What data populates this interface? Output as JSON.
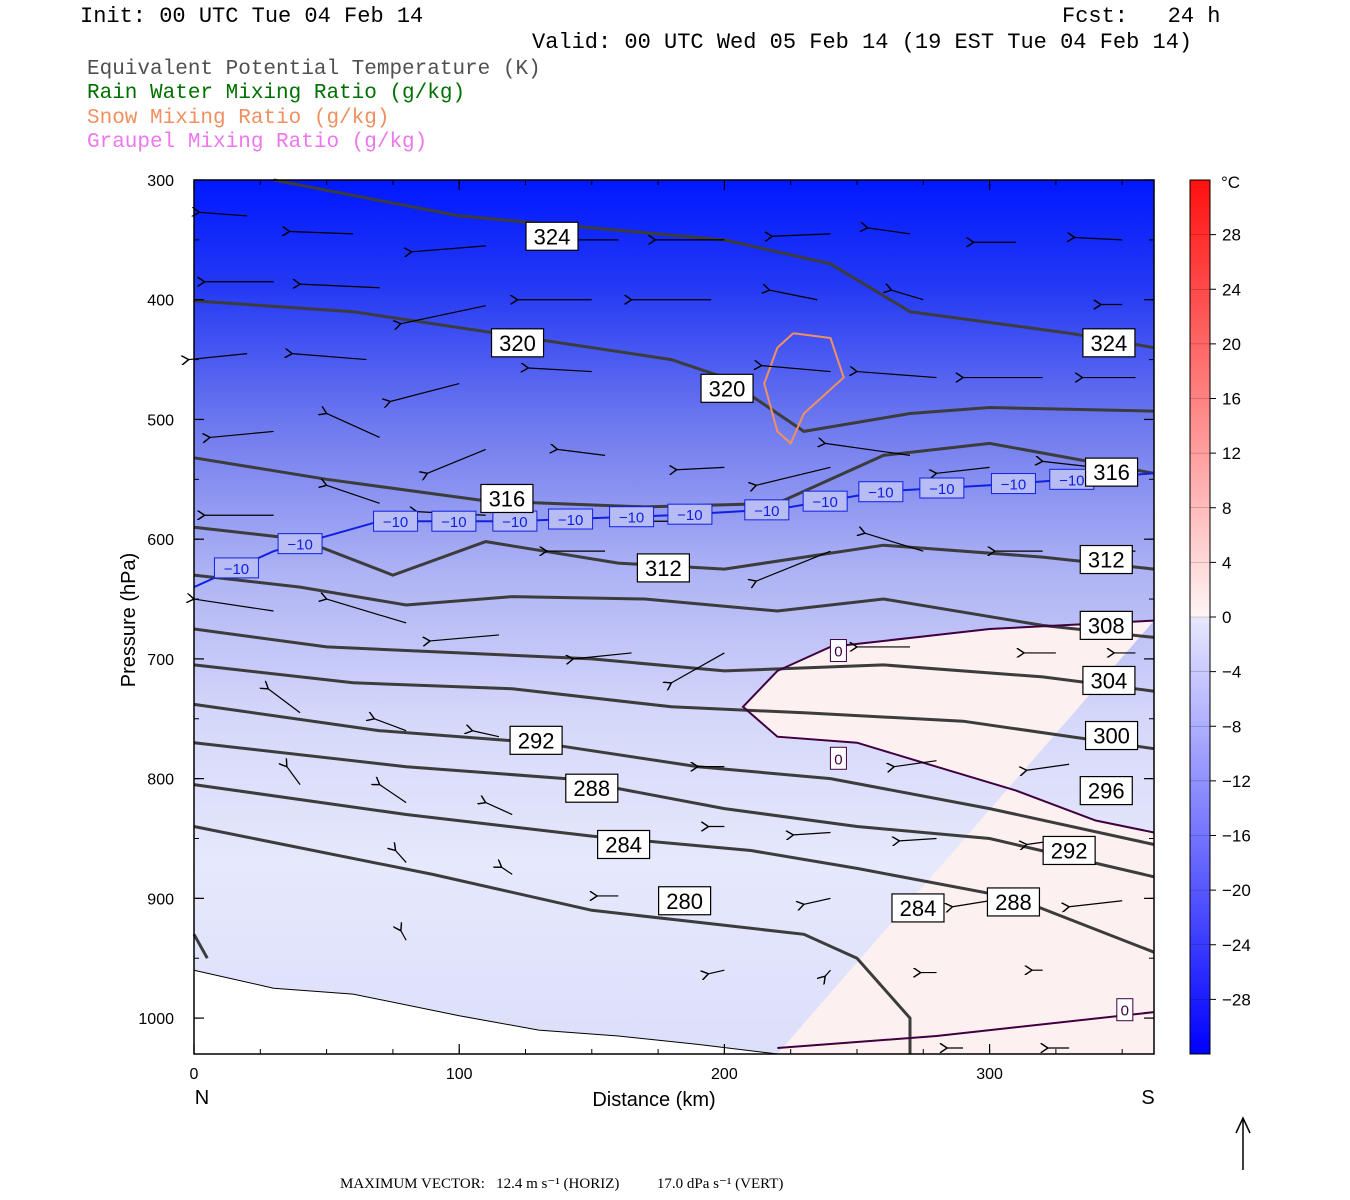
{
  "header": {
    "init": "Init: 00 UTC Tue 04 Feb 14",
    "fcst": "Fcst:   24 h",
    "valid": "Valid: 00 UTC Wed 05 Feb 14 (19 EST Tue 04 Feb 14)"
  },
  "legend": [
    {
      "text": "Equivalent Potential Temperature (K)",
      "color": "#505050"
    },
    {
      "text": "Rain Water Mixing Ratio (g/kg)",
      "color": "#007000"
    },
    {
      "text": "Snow Mixing Ratio (g/kg)",
      "color": "#f09060"
    },
    {
      "text": "Graupel Mixing Ratio (g/kg)",
      "color": "#ee77ee"
    }
  ],
  "chart_data": {
    "type": "cross-section",
    "xlabel": "Distance (km)",
    "ylabel": "Pressure (hPa)",
    "xlim": [
      0,
      362
    ],
    "ylim": [
      1030,
      300
    ],
    "x_ticks": [
      0,
      100,
      200,
      300
    ],
    "y_ticks": [
      300,
      400,
      500,
      600,
      700,
      800,
      900,
      1000
    ],
    "x_end_labels": {
      "left": "N",
      "right": "S"
    },
    "colorbar": {
      "unit": "°C",
      "min": -32,
      "max": 32,
      "labels": [
        28,
        24,
        20,
        16,
        12,
        8,
        4,
        0,
        -4,
        -8,
        -12,
        -16,
        -20,
        -24,
        -28
      ],
      "label_text": [
        "28",
        "24",
        "20",
        "16",
        "12",
        "8",
        "4",
        "0",
        "−4",
        "−8",
        "−12",
        "−16",
        "−20",
        "−24",
        "−28"
      ]
    },
    "theta_e_contours": [
      {
        "label": "324",
        "points": [
          [
            30,
            300
          ],
          [
            100,
            330
          ],
          [
            200,
            350
          ],
          [
            240,
            370
          ],
          [
            270,
            410
          ],
          [
            330,
            428
          ],
          [
            362,
            440
          ]
        ]
      },
      {
        "label": "320",
        "points": [
          [
            0,
            401
          ],
          [
            60,
            410
          ],
          [
            120,
            430
          ],
          [
            180,
            450
          ],
          [
            200,
            465
          ],
          [
            230,
            510
          ],
          [
            270,
            495
          ],
          [
            300,
            490
          ],
          [
            362,
            493
          ]
        ]
      },
      {
        "label": "316",
        "points": [
          [
            0,
            532
          ],
          [
            50,
            550
          ],
          [
            110,
            568
          ],
          [
            170,
            573
          ],
          [
            220,
            570
          ],
          [
            260,
            530
          ],
          [
            300,
            520
          ],
          [
            362,
            545
          ]
        ]
      },
      {
        "label": "312",
        "points": [
          [
            0,
            590
          ],
          [
            40,
            600
          ],
          [
            75,
            630
          ],
          [
            110,
            602
          ],
          [
            160,
            620
          ],
          [
            200,
            625
          ],
          [
            260,
            605
          ],
          [
            320,
            615
          ],
          [
            362,
            625
          ]
        ]
      },
      {
        "label": "308",
        "points": [
          [
            0,
            630
          ],
          [
            40,
            640
          ],
          [
            80,
            655
          ],
          [
            120,
            648
          ],
          [
            170,
            650
          ],
          [
            220,
            660
          ],
          [
            260,
            650
          ],
          [
            320,
            672
          ],
          [
            362,
            682
          ]
        ]
      },
      {
        "label": "304",
        "points": [
          [
            0,
            675
          ],
          [
            50,
            690
          ],
          [
            100,
            695
          ],
          [
            150,
            700
          ],
          [
            200,
            710
          ],
          [
            260,
            705
          ],
          [
            320,
            715
          ],
          [
            362,
            727
          ]
        ]
      },
      {
        "label": "300",
        "points": [
          [
            0,
            705
          ],
          [
            60,
            720
          ],
          [
            120,
            725
          ],
          [
            180,
            740
          ],
          [
            230,
            745
          ],
          [
            290,
            752
          ],
          [
            362,
            775
          ]
        ]
      },
      {
        "label": "296",
        "points": [
          [
            0,
            738
          ],
          [
            70,
            760
          ],
          [
            130,
            770
          ],
          [
            190,
            790
          ],
          [
            240,
            800
          ],
          [
            300,
            825
          ],
          [
            362,
            855
          ]
        ]
      },
      {
        "label": "292",
        "points": [
          [
            0,
            770
          ],
          [
            80,
            790
          ],
          [
            140,
            800
          ],
          [
            200,
            825
          ],
          [
            250,
            840
          ],
          [
            300,
            850
          ],
          [
            362,
            882
          ]
        ]
      },
      {
        "label": "288",
        "points": [
          [
            0,
            805
          ],
          [
            80,
            830
          ],
          [
            150,
            848
          ],
          [
            210,
            860
          ],
          [
            250,
            875
          ],
          [
            310,
            900
          ],
          [
            362,
            945
          ]
        ]
      },
      {
        "label": "284",
        "points": [
          [
            0,
            840
          ],
          [
            90,
            880
          ],
          [
            150,
            910
          ],
          [
            190,
            920
          ],
          [
            230,
            930
          ],
          [
            250,
            950
          ],
          [
            270,
            1000
          ],
          [
            270,
            1030
          ]
        ]
      },
      {
        "label": "280",
        "points": [
          [
            0,
            930
          ],
          [
            5,
            950
          ]
        ]
      }
    ],
    "theta_e_labels": [
      {
        "text": "324",
        "x": 135,
        "p": 347
      },
      {
        "text": "320",
        "x": 122,
        "p": 436
      },
      {
        "text": "320",
        "x": 201,
        "p": 474
      },
      {
        "text": "324",
        "x": 345,
        "p": 436
      },
      {
        "text": "316",
        "x": 118,
        "p": 566
      },
      {
        "text": "316",
        "x": 346,
        "p": 544
      },
      {
        "text": "312",
        "x": 177,
        "p": 624
      },
      {
        "text": "312",
        "x": 344,
        "p": 617
      },
      {
        "text": "308",
        "x": 344,
        "p": 672
      },
      {
        "text": "304",
        "x": 345,
        "p": 718
      },
      {
        "text": "300",
        "x": 346,
        "p": 764
      },
      {
        "text": "296",
        "x": 344,
        "p": 810
      },
      {
        "text": "292",
        "x": 129,
        "p": 768
      },
      {
        "text": "292",
        "x": 330,
        "p": 860
      },
      {
        "text": "288",
        "x": 150,
        "p": 808
      },
      {
        "text": "284",
        "x": 162,
        "p": 855
      },
      {
        "text": "280",
        "x": 185,
        "p": 902
      },
      {
        "text": "284",
        "x": 273,
        "p": 908
      },
      {
        "text": "288",
        "x": 309,
        "p": 903
      }
    ],
    "isotherm_minus10": {
      "label": "−10",
      "points": [
        [
          0,
          640
        ],
        [
          30,
          610
        ],
        [
          70,
          585
        ],
        [
          120,
          585
        ],
        [
          180,
          580
        ],
        [
          220,
          575
        ],
        [
          260,
          560
        ],
        [
          300,
          555
        ],
        [
          362,
          545
        ]
      ],
      "label_x": [
        16,
        40,
        76,
        98,
        121,
        142,
        165,
        187,
        216,
        238,
        259,
        282,
        309,
        331
      ]
    },
    "isotherm_zero": {
      "label": "0",
      "upper": [
        [
          362,
          668
        ],
        [
          300,
          675
        ],
        [
          240,
          690
        ],
        [
          220,
          710
        ],
        [
          207,
          740
        ],
        [
          220,
          765
        ],
        [
          250,
          770
        ],
        [
          280,
          790
        ],
        [
          310,
          810
        ],
        [
          340,
          835
        ],
        [
          362,
          845
        ]
      ],
      "lower": [
        [
          220,
          1025
        ],
        [
          280,
          1015
        ],
        [
          362,
          995
        ]
      ],
      "label_positions": [
        [
          243,
          693
        ],
        [
          243,
          783
        ],
        [
          351,
          993
        ]
      ]
    },
    "snow_contour": {
      "points": [
        [
          226,
          428
        ],
        [
          240,
          432
        ],
        [
          245,
          465
        ],
        [
          230,
          495
        ],
        [
          225,
          520
        ],
        [
          220,
          510
        ],
        [
          215,
          470
        ],
        [
          220,
          440
        ],
        [
          226,
          428
        ]
      ]
    },
    "temperature_field_note": "shaded −28 to +4 °C",
    "terrain": [
      [
        0,
        960
      ],
      [
        30,
        975
      ],
      [
        60,
        980
      ],
      [
        100,
        998
      ],
      [
        130,
        1010
      ],
      [
        160,
        1015
      ],
      [
        190,
        1022
      ],
      [
        220,
        1030
      ]
    ],
    "vectors": [
      {
        "x": 20,
        "p": 330,
        "dx": -18,
        "dp": -3
      },
      {
        "x": 60,
        "p": 345,
        "dx": -24,
        "dp": -2
      },
      {
        "x": 110,
        "p": 355,
        "dx": -28,
        "dp": 5
      },
      {
        "x": 160,
        "p": 350,
        "dx": -30,
        "dp": 0
      },
      {
        "x": 200,
        "p": 350,
        "dx": -26,
        "dp": 0
      },
      {
        "x": 240,
        "p": 345,
        "dx": -22,
        "dp": 2
      },
      {
        "x": 270,
        "p": 345,
        "dx": -16,
        "dp": -5
      },
      {
        "x": 310,
        "p": 352,
        "dx": -16,
        "dp": 0
      },
      {
        "x": 350,
        "p": 350,
        "dx": -18,
        "dp": -2
      },
      {
        "x": 30,
        "p": 385,
        "dx": -26,
        "dp": 0
      },
      {
        "x": 70,
        "p": 390,
        "dx": -30,
        "dp": -3
      },
      {
        "x": 110,
        "p": 405,
        "dx": -32,
        "dp": 15
      },
      {
        "x": 150,
        "p": 400,
        "dx": -28,
        "dp": 0
      },
      {
        "x": 195,
        "p": 400,
        "dx": -30,
        "dp": 0
      },
      {
        "x": 235,
        "p": 400,
        "dx": -18,
        "dp": -8
      },
      {
        "x": 275,
        "p": 400,
        "dx": -12,
        "dp": -8
      },
      {
        "x": 350,
        "p": 404,
        "dx": -8,
        "dp": 0
      },
      {
        "x": 20,
        "p": 445,
        "dx": -22,
        "dp": 5
      },
      {
        "x": 65,
        "p": 450,
        "dx": -28,
        "dp": -5
      },
      {
        "x": 100,
        "p": 470,
        "dx": -26,
        "dp": 15
      },
      {
        "x": 150,
        "p": 460,
        "dx": -24,
        "dp": -3
      },
      {
        "x": 240,
        "p": 460,
        "dx": -26,
        "dp": -5
      },
      {
        "x": 280,
        "p": 465,
        "dx": -30,
        "dp": -5
      },
      {
        "x": 320,
        "p": 465,
        "dx": -30,
        "dp": 0
      },
      {
        "x": 355,
        "p": 465,
        "dx": -20,
        "dp": 0
      },
      {
        "x": 30,
        "p": 510,
        "dx": -24,
        "dp": 5
      },
      {
        "x": 70,
        "p": 515,
        "dx": -20,
        "dp": -20
      },
      {
        "x": 110,
        "p": 525,
        "dx": -22,
        "dp": 20
      },
      {
        "x": 155,
        "p": 530,
        "dx": -18,
        "dp": -5
      },
      {
        "x": 200,
        "p": 540,
        "dx": -18,
        "dp": 2
      },
      {
        "x": 240,
        "p": 540,
        "dx": -28,
        "dp": 15
      },
      {
        "x": 270,
        "p": 530,
        "dx": -32,
        "dp": -10
      },
      {
        "x": 300,
        "p": 540,
        "dx": -20,
        "dp": 5
      },
      {
        "x": 340,
        "p": 540,
        "dx": -20,
        "dp": -5
      },
      {
        "x": 30,
        "p": 580,
        "dx": -26,
        "dp": 0
      },
      {
        "x": 70,
        "p": 570,
        "dx": -20,
        "dp": -15
      },
      {
        "x": 110,
        "p": 580,
        "dx": -26,
        "dp": -3
      },
      {
        "x": 155,
        "p": 610,
        "dx": -22,
        "dp": 0
      },
      {
        "x": 195,
        "p": 585,
        "dx": -30,
        "dp": 0
      },
      {
        "x": 240,
        "p": 610,
        "dx": -28,
        "dp": 25
      },
      {
        "x": 275,
        "p": 610,
        "dx": -22,
        "dp": -15
      },
      {
        "x": 320,
        "p": 610,
        "dx": -18,
        "dp": 0
      },
      {
        "x": 355,
        "p": 610,
        "dx": -10,
        "dp": 0
      },
      {
        "x": 30,
        "p": 660,
        "dx": -30,
        "dp": -10
      },
      {
        "x": 80,
        "p": 670,
        "dx": -30,
        "dp": -20
      },
      {
        "x": 115,
        "p": 680,
        "dx": -26,
        "dp": 5
      },
      {
        "x": 165,
        "p": 695,
        "dx": -22,
        "dp": 5
      },
      {
        "x": 200,
        "p": 695,
        "dx": -20,
        "dp": 25
      },
      {
        "x": 270,
        "p": 690,
        "dx": -20,
        "dp": 0
      },
      {
        "x": 325,
        "p": 695,
        "dx": -12,
        "dp": 0
      },
      {
        "x": 355,
        "p": 695,
        "dx": -8,
        "dp": 0
      },
      {
        "x": 40,
        "p": 745,
        "dx": -12,
        "dp": -20
      },
      {
        "x": 80,
        "p": 760,
        "dx": -12,
        "dp": -10
      },
      {
        "x": 115,
        "p": 765,
        "dx": -10,
        "dp": -5
      },
      {
        "x": 200,
        "p": 790,
        "dx": -10,
        "dp": 0
      },
      {
        "x": 280,
        "p": 785,
        "dx": -16,
        "dp": 5
      },
      {
        "x": 330,
        "p": 788,
        "dx": -16,
        "dp": 5
      },
      {
        "x": 40,
        "p": 805,
        "dx": -5,
        "dp": -15
      },
      {
        "x": 80,
        "p": 820,
        "dx": -10,
        "dp": -15
      },
      {
        "x": 120,
        "p": 830,
        "dx": -10,
        "dp": -10
      },
      {
        "x": 200,
        "p": 840,
        "dx": -6,
        "dp": 0
      },
      {
        "x": 240,
        "p": 845,
        "dx": -14,
        "dp": 2
      },
      {
        "x": 280,
        "p": 850,
        "dx": -14,
        "dp": 2
      },
      {
        "x": 330,
        "p": 850,
        "dx": -16,
        "dp": 5
      },
      {
        "x": 80,
        "p": 870,
        "dx": -4,
        "dp": -10
      },
      {
        "x": 120,
        "p": 880,
        "dx": -4,
        "dp": -6
      },
      {
        "x": 160,
        "p": 898,
        "dx": -8,
        "dp": 0
      },
      {
        "x": 240,
        "p": 900,
        "dx": -10,
        "dp": 5
      },
      {
        "x": 300,
        "p": 902,
        "dx": -14,
        "dp": 5
      },
      {
        "x": 350,
        "p": 902,
        "dx": -20,
        "dp": 5
      },
      {
        "x": 80,
        "p": 935,
        "dx": -2,
        "dp": -8
      },
      {
        "x": 200,
        "p": 960,
        "dx": -6,
        "dp": 3
      },
      {
        "x": 240,
        "p": 960,
        "dx": -2,
        "dp": 5
      },
      {
        "x": 280,
        "p": 962,
        "dx": -6,
        "dp": 0
      },
      {
        "x": 320,
        "p": 960,
        "dx": -4,
        "dp": 0
      },
      {
        "x": 330,
        "p": 1025,
        "dx": -8,
        "dp": 0
      },
      {
        "x": 290,
        "p": 1025,
        "dx": -6,
        "dp": 0
      }
    ]
  },
  "footer": {
    "label": "MAXIMUM VECTOR:",
    "horiz": "12.4 m s⁻¹ (HORIZ)",
    "vert": "17.0 dPa s⁻¹ (VERT)"
  }
}
